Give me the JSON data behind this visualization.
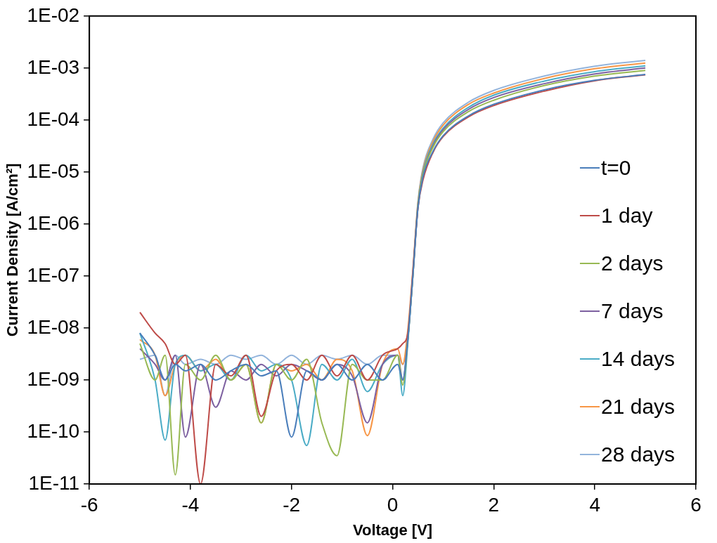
{
  "chart_data": {
    "type": "line",
    "xlabel": "Voltage [V]",
    "ylabel": "Current Density [A/cm²]",
    "log": "y",
    "grid": false,
    "legend": "right",
    "marker": "none",
    "line_style": "solid",
    "xlim": [
      -6,
      6
    ],
    "xticks": [
      -6,
      -4,
      -2,
      0,
      2,
      4,
      6
    ],
    "ylim": [
      1e-11,
      0.01
    ],
    "yticks": [
      {
        "value": 1e-11,
        "label": "1E-11"
      },
      {
        "value": 1e-10,
        "label": "1E-10"
      },
      {
        "value": 1e-09,
        "label": "1E-09"
      },
      {
        "value": 1e-08,
        "label": "1E-08"
      },
      {
        "value": 1e-07,
        "label": "1E-07"
      },
      {
        "value": 1e-06,
        "label": "1E-06"
      },
      {
        "value": 1e-05,
        "label": "1E-05"
      },
      {
        "value": 0.0001,
        "label": "1E-04"
      },
      {
        "value": 0.001,
        "label": "1E-03"
      },
      {
        "value": 0.01,
        "label": "1E-02"
      }
    ],
    "x": [
      -5,
      -4.7,
      -4.5,
      -4.3,
      -4.1,
      -3.8,
      -3.5,
      -3.2,
      -2.9,
      -2.6,
      -2.3,
      -2,
      -1.7,
      -1.4,
      -1.1,
      -0.8,
      -0.5,
      -0.2,
      0.1,
      0.2,
      0.3,
      0.4,
      0.5,
      0.6,
      0.8,
      1,
      1.5,
      2,
      3,
      4,
      5
    ],
    "series": [
      {
        "name": "t=0",
        "color": "#4a7ebb",
        "values": [
          8e-09,
          3e-09,
          1e-09,
          2e-09,
          1.5e-09,
          2e-09,
          1e-09,
          1.5e-09,
          2e-09,
          1.2e-09,
          1.5e-09,
          8e-11,
          1.5e-09,
          1e-09,
          2e-09,
          1e-09,
          2e-09,
          1e-09,
          2e-09,
          1e-09,
          6e-09,
          1e-07,
          2e-06,
          8e-06,
          2.5e-05,
          5e-05,
          0.00012,
          0.0002,
          0.00038,
          0.00058,
          0.00075
        ]
      },
      {
        "name": "1 day",
        "color": "#be4b48",
        "values": [
          2e-08,
          8e-09,
          5e-09,
          2e-09,
          3e-09,
          1e-11,
          2e-09,
          1.2e-09,
          3e-09,
          2e-10,
          1.5e-09,
          2e-09,
          1e-09,
          3e-09,
          1.2e-09,
          3e-09,
          1e-09,
          3e-09,
          4e-09,
          5e-09,
          8e-09,
          1.2e-07,
          2e-06,
          7e-06,
          2.4e-05,
          4.8e-05,
          0.000115,
          0.00019,
          0.00036,
          0.00057,
          0.00074
        ]
      },
      {
        "name": "2 days",
        "color": "#98b954",
        "values": [
          5e-09,
          1e-09,
          3e-09,
          1.5e-11,
          2e-09,
          1e-09,
          3e-09,
          1e-09,
          2e-09,
          1.5e-10,
          2e-09,
          1e-09,
          2.5e-09,
          1.5e-10,
          3.5e-11,
          2e-09,
          1e-09,
          1e-09,
          3e-09,
          8e-10,
          6e-09,
          1e-07,
          2.2e-06,
          9e-06,
          3e-05,
          6e-05,
          0.000145,
          0.00024,
          0.00046,
          0.0007,
          0.0009
        ]
      },
      {
        "name": "7 days",
        "color": "#7d60a0",
        "values": [
          4e-09,
          2e-09,
          1e-09,
          3e-09,
          8e-11,
          2e-09,
          3e-10,
          1.5e-09,
          1e-09,
          2e-09,
          1.2e-09,
          2e-09,
          1.5e-09,
          1e-09,
          2e-09,
          1.2e-09,
          1.5e-10,
          2e-09,
          3e-09,
          1e-09,
          6e-09,
          1e-07,
          2.1e-06,
          9e-06,
          3.2e-05,
          6.5e-05,
          0.00016,
          0.00027,
          0.0005,
          0.00077,
          0.001
        ]
      },
      {
        "name": "14 days",
        "color": "#4bacc6",
        "values": [
          8e-09,
          1e-09,
          7e-11,
          2e-09,
          3e-09,
          1.5e-09,
          2e-09,
          1e-09,
          3e-09,
          1.5e-09,
          2e-09,
          1e-09,
          5.5e-11,
          2e-09,
          1e-09,
          2.5e-09,
          6e-10,
          2e-09,
          3e-09,
          5e-10,
          5e-09,
          1e-07,
          2.3e-06,
          1e-05,
          3.5e-05,
          7e-05,
          0.000175,
          0.0003,
          0.00056,
          0.00085,
          0.0011
        ]
      },
      {
        "name": "21 days",
        "color": "#f79646",
        "values": [
          6e-09,
          3e-09,
          5e-10,
          2e-09,
          3e-09,
          1.5e-09,
          2.5e-09,
          1e-09,
          2e-09,
          1.5e-10,
          2e-09,
          1.5e-09,
          2e-09,
          1e-09,
          2.5e-09,
          1.5e-09,
          8.5e-11,
          2e-09,
          4e-09,
          2e-09,
          9e-09,
          1.3e-07,
          2.5e-06,
          1.1e-05,
          3.9e-05,
          8e-05,
          0.0002,
          0.00033,
          0.00063,
          0.00097,
          0.00125
        ]
      },
      {
        "name": "28 days",
        "color": "#93b4dc",
        "values": [
          2.5e-09,
          3e-09,
          5e-10,
          3e-09,
          2e-09,
          2.5e-09,
          2e-09,
          3e-09,
          2.5e-09,
          3e-09,
          2e-09,
          3e-09,
          2e-09,
          3e-09,
          2.5e-09,
          3e-09,
          2e-09,
          3e-09,
          3e-09,
          2e-09,
          6e-09,
          1.1e-07,
          2.6e-06,
          1.2e-05,
          4.3e-05,
          8.8e-05,
          0.00022,
          0.00037,
          0.0007,
          0.00108,
          0.0014
        ]
      }
    ]
  }
}
